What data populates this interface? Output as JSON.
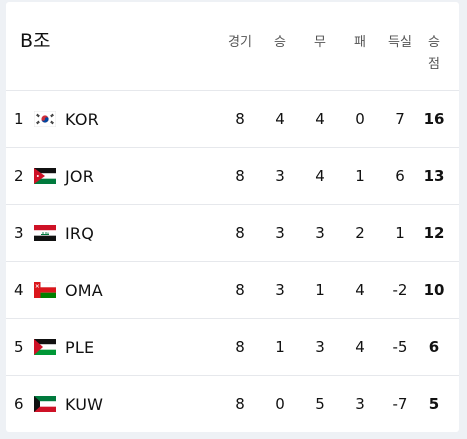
{
  "group_title": "B조",
  "headers": {
    "played": "경기",
    "win": "승",
    "draw": "무",
    "loss": "패",
    "gd": "득실",
    "pts_1": "승",
    "pts_2": "점"
  },
  "teams": [
    {
      "rank": "1",
      "code": "KOR",
      "flag": "korea-flag-icon",
      "played": "8",
      "win": "4",
      "draw": "4",
      "loss": "0",
      "gd": "7",
      "pts": "16"
    },
    {
      "rank": "2",
      "code": "JOR",
      "flag": "jordan-flag-icon",
      "played": "8",
      "win": "3",
      "draw": "4",
      "loss": "1",
      "gd": "6",
      "pts": "13"
    },
    {
      "rank": "3",
      "code": "IRQ",
      "flag": "iraq-flag-icon",
      "played": "8",
      "win": "3",
      "draw": "3",
      "loss": "2",
      "gd": "1",
      "pts": "12"
    },
    {
      "rank": "4",
      "code": "OMA",
      "flag": "oman-flag-icon",
      "played": "8",
      "win": "3",
      "draw": "1",
      "loss": "4",
      "gd": "-2",
      "pts": "10"
    },
    {
      "rank": "5",
      "code": "PLE",
      "flag": "palestine-flag-icon",
      "played": "8",
      "win": "1",
      "draw": "3",
      "loss": "4",
      "gd": "-5",
      "pts": "6"
    },
    {
      "rank": "6",
      "code": "KUW",
      "flag": "kuwait-flag-icon",
      "played": "8",
      "win": "0",
      "draw": "5",
      "loss": "3",
      "gd": "-7",
      "pts": "5"
    }
  ]
}
